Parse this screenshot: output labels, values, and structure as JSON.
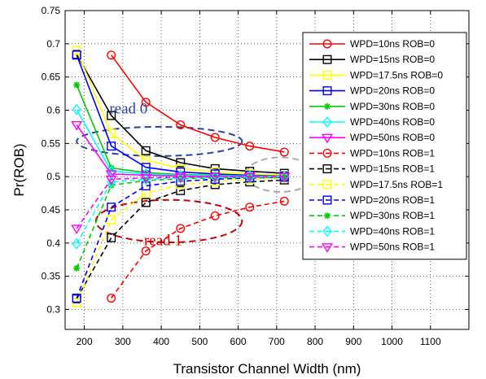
{
  "chart_data": {
    "type": "line",
    "title": "",
    "xlabel": "Transistor Channel Width (nm)",
    "ylabel": "Pr(ROB)",
    "xlim": [
      150,
      1200
    ],
    "ylim": [
      0.27,
      0.75
    ],
    "xticks": [
      200,
      300,
      400,
      500,
      600,
      700,
      800,
      900,
      1000,
      1100
    ],
    "yticks": [
      0.3,
      0.35,
      0.4,
      0.45,
      0.5,
      0.55,
      0.6,
      0.65,
      0.7,
      0.75
    ],
    "grid": true,
    "legend_position": "right",
    "x": [
      180,
      270,
      360,
      450,
      540,
      630,
      720
    ],
    "series": [
      {
        "name": "WPD=10ns ROB=0",
        "color": "#ff0000",
        "marker": "circle",
        "dash": "solid",
        "x": [
          270,
          360,
          450,
          540,
          630,
          720
        ],
        "values": [
          0.683,
          0.612,
          0.578,
          0.559,
          0.546,
          0.537
        ]
      },
      {
        "name": "WPD=15ns ROB=0",
        "color": "#000000",
        "marker": "square",
        "dash": "solid",
        "x": [
          180,
          270,
          360,
          450,
          540,
          630,
          720
        ],
        "values": [
          0.684,
          0.592,
          0.539,
          0.521,
          0.512,
          0.508,
          0.505
        ]
      },
      {
        "name": "WPD=17.5ns ROB=0",
        "color": "#ffff00",
        "marker": "square",
        "dash": "solid",
        "x": [
          180,
          270,
          360,
          450,
          540,
          630,
          720
        ],
        "values": [
          0.69,
          0.565,
          0.525,
          0.512,
          0.507,
          0.504,
          0.502
        ]
      },
      {
        "name": "WPD=20ns ROB=0",
        "color": "#0000ff",
        "marker": "square",
        "dash": "solid",
        "x": [
          180,
          270,
          360,
          450,
          540,
          630,
          720
        ],
        "values": [
          0.683,
          0.546,
          0.514,
          0.507,
          0.504,
          0.502,
          0.501
        ]
      },
      {
        "name": "WPD=30ns ROB=0",
        "color": "#00cc00",
        "marker": "star",
        "dash": "solid",
        "x": [
          180,
          270,
          360,
          450,
          540,
          630,
          720
        ],
        "values": [
          0.638,
          0.513,
          0.506,
          0.503,
          0.502,
          0.501,
          0.501
        ]
      },
      {
        "name": "WPD=40ns ROB=0",
        "color": "#00ffff",
        "marker": "diamond",
        "dash": "solid",
        "x": [
          180,
          270,
          360,
          450,
          540,
          630,
          720
        ],
        "values": [
          0.601,
          0.508,
          0.504,
          0.502,
          0.501,
          0.501,
          0.5
        ]
      },
      {
        "name": "WPD=50ns ROB=0",
        "color": "#ff00ff",
        "marker": "triangle-down",
        "dash": "solid",
        "x": [
          180,
          270,
          360,
          450,
          540,
          630,
          720
        ],
        "values": [
          0.578,
          0.504,
          0.502,
          0.501,
          0.5,
          0.5,
          0.5
        ]
      },
      {
        "name": "WPD=10ns ROB=1",
        "color": "#ff0000",
        "marker": "circle",
        "dash": "dashed",
        "x": [
          270,
          360,
          450,
          540,
          630,
          720
        ],
        "values": [
          0.317,
          0.388,
          0.422,
          0.441,
          0.454,
          0.463
        ]
      },
      {
        "name": "WPD=15ns ROB=1",
        "color": "#000000",
        "marker": "square",
        "dash": "dashed",
        "x": [
          180,
          270,
          360,
          450,
          540,
          630,
          720
        ],
        "values": [
          0.316,
          0.408,
          0.461,
          0.479,
          0.488,
          0.492,
          0.495
        ]
      },
      {
        "name": "WPD=17.5ns ROB=1",
        "color": "#ffff00",
        "marker": "square",
        "dash": "dashed",
        "x": [
          180,
          270,
          360,
          450,
          540,
          630,
          720
        ],
        "values": [
          0.31,
          0.435,
          0.475,
          0.488,
          0.493,
          0.496,
          0.498
        ]
      },
      {
        "name": "WPD=20ns ROB=1",
        "color": "#0000ff",
        "marker": "square",
        "dash": "dashed",
        "x": [
          180,
          270,
          360,
          450,
          540,
          630,
          720
        ],
        "values": [
          0.317,
          0.454,
          0.486,
          0.493,
          0.496,
          0.498,
          0.499
        ]
      },
      {
        "name": "WPD=30ns ROB=1",
        "color": "#00cc00",
        "marker": "star",
        "dash": "dashed",
        "x": [
          180,
          270,
          360,
          450,
          540,
          630,
          720
        ],
        "values": [
          0.362,
          0.487,
          0.494,
          0.497,
          0.498,
          0.499,
          0.499
        ]
      },
      {
        "name": "WPD=40ns ROB=1",
        "color": "#00ffff",
        "marker": "diamond",
        "dash": "dashed",
        "x": [
          180,
          270,
          360,
          450,
          540,
          630,
          720
        ],
        "values": [
          0.399,
          0.492,
          0.496,
          0.498,
          0.499,
          0.499,
          0.5
        ]
      },
      {
        "name": "WPD=50ns ROB=1",
        "color": "#ff00ff",
        "marker": "triangle-down",
        "dash": "dashed",
        "x": [
          180,
          270,
          360,
          450,
          540,
          630,
          720
        ],
        "values": [
          0.422,
          0.496,
          0.498,
          0.499,
          0.5,
          0.5,
          0.5
        ]
      }
    ],
    "annotations": [
      {
        "text": "read 0",
        "color": "#2a3fa8",
        "x": 265,
        "y": 0.595,
        "ellipse": {
          "cx": 395,
          "cy": 0.553,
          "rx": 215,
          "ry": 0.022,
          "color": "#2a3fa8"
        }
      },
      {
        "text": "read 1",
        "color": "#cc0000",
        "x": 355,
        "y": 0.397,
        "ellipse": {
          "cx": 420,
          "cy": 0.433,
          "rx": 190,
          "ry": 0.032,
          "color": "#cc0000"
        }
      },
      {
        "text": "",
        "color": "#999999",
        "ellipse": {
          "cx": 710,
          "cy": 0.503,
          "rx": 90,
          "ry": 0.026,
          "color": "#aaaaaa"
        }
      }
    ]
  }
}
